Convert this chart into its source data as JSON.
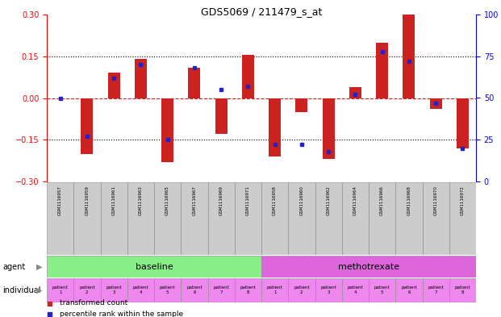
{
  "title": "GDS5069 / 211479_s_at",
  "samples": [
    "GSM1116957",
    "GSM1116959",
    "GSM1116961",
    "GSM1116963",
    "GSM1116965",
    "GSM1116967",
    "GSM1116969",
    "GSM1116971",
    "GSM1116958",
    "GSM1116960",
    "GSM1116962",
    "GSM1116964",
    "GSM1116966",
    "GSM1116968",
    "GSM1116970",
    "GSM1116972"
  ],
  "transformed_count": [
    0.0,
    -0.2,
    0.09,
    0.14,
    -0.23,
    0.11,
    -0.13,
    0.155,
    -0.21,
    -0.05,
    -0.22,
    0.04,
    0.2,
    0.3,
    -0.04,
    -0.18
  ],
  "percentile_rank": [
    50,
    27,
    62,
    70,
    25,
    68,
    55,
    57,
    22,
    22,
    18,
    52,
    78,
    72,
    47,
    20
  ],
  "ylim_left": [
    -0.3,
    0.3
  ],
  "ylim_right": [
    0,
    100
  ],
  "yticks_left": [
    -0.3,
    -0.15,
    0.0,
    0.15,
    0.3
  ],
  "yticks_right": [
    0,
    25,
    50,
    75,
    100
  ],
  "bar_color": "#cc2222",
  "dot_color": "#2222cc",
  "hline_positions": [
    -0.15,
    0.0,
    0.15
  ],
  "agent_groups": [
    {
      "label": "baseline",
      "start": 0,
      "end": 8,
      "color": "#88ee88"
    },
    {
      "label": "methotrexate",
      "start": 8,
      "end": 16,
      "color": "#dd66dd"
    }
  ],
  "patients": [
    "patient\n1",
    "patient\n2",
    "patient\n3",
    "patient\n4",
    "patient\n5",
    "patient\n6",
    "patient\n7",
    "patient\n8",
    "patient\n1",
    "patient\n2",
    "patient\n3",
    "patient\n4",
    "patient\n5",
    "patient\n6",
    "patient\n7",
    "patient\n8"
  ],
  "patient_color": "#ee88ee",
  "sample_bg": "#cccccc",
  "legend_bar_label": "transformed count",
  "legend_dot_label": "percentile rank within the sample",
  "zero_line_color": "#cc2222",
  "chart_bg": "#ffffff"
}
